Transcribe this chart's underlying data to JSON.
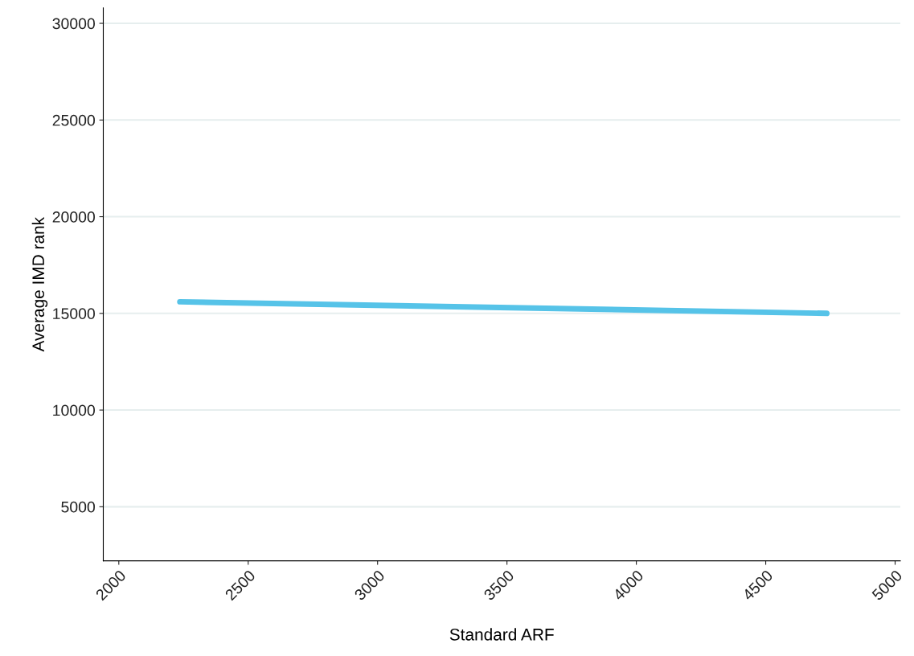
{
  "chart_data": {
    "type": "line",
    "xlabel": "Standard ARF",
    "ylabel": "Average IMD rank",
    "series": [
      {
        "color": "#56c3e8",
        "x": [
          2236,
          4736
        ],
        "values": [
          15600,
          15000
        ]
      }
    ],
    "xlim": [
      1940,
      5020
    ],
    "xticks": [
      2000,
      2500,
      3000,
      3500,
      4000,
      4500,
      5000
    ],
    "ylim": [
      2200,
      30800
    ],
    "yticks": [
      5000,
      10000,
      15000,
      20000,
      25000,
      30000
    ],
    "grid": "y",
    "legend": false,
    "marker": "none",
    "line_style": "solid"
  }
}
